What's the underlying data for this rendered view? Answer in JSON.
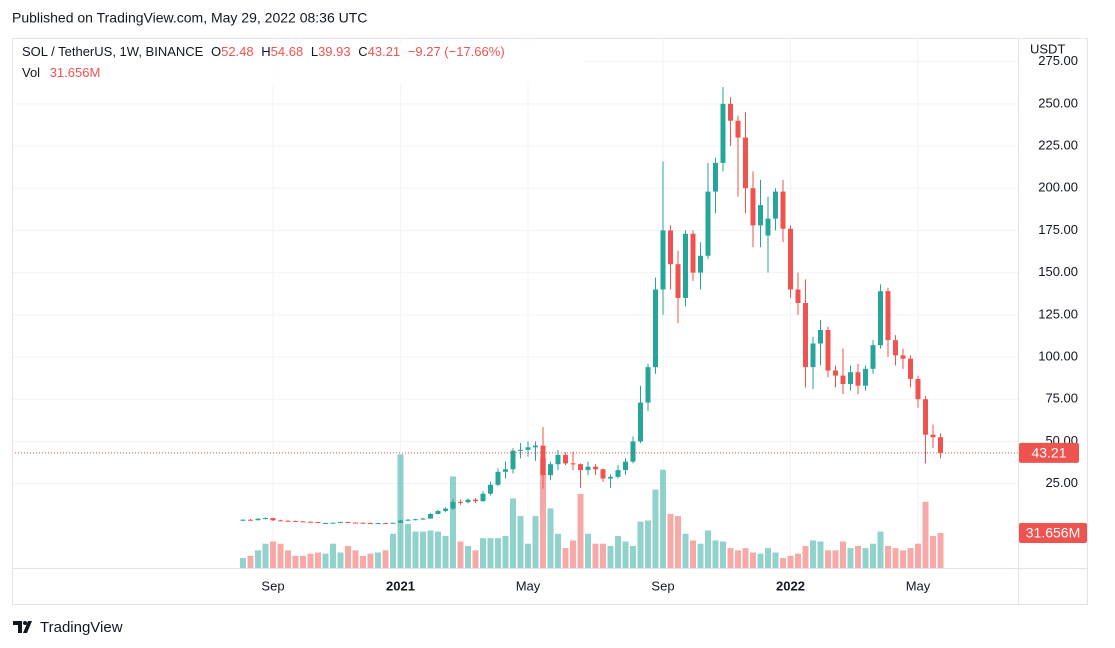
{
  "published": "Published on TradingView.com, May 29, 2022 08:36 UTC",
  "brand": "TradingView",
  "chart_data": {
    "type": "candlestick",
    "title": "SOL / TetherUS, 1W, BINANCE",
    "ohlc_labels": [
      "O",
      "H",
      "L",
      "C"
    ],
    "change_label": "−9.27 (−17.66%)",
    "volume_name": "Vol",
    "volume_label": "31.656M",
    "axis_unit": "USDT",
    "up_color": "#26a69a",
    "down_color": "#ef5350",
    "grid": true,
    "categories": [
      null,
      null,
      null,
      null,
      "Sep",
      null,
      null,
      null,
      null,
      null,
      null,
      null,
      null,
      null,
      null,
      null,
      null,
      null,
      null,
      null,
      null,
      "2021",
      null,
      null,
      null,
      null,
      null,
      null,
      null,
      null,
      null,
      null,
      null,
      null,
      null,
      null,
      null,
      null,
      "May",
      null,
      null,
      null,
      null,
      null,
      null,
      null,
      null,
      null,
      null,
      null,
      null,
      null,
      null,
      null,
      null,
      null,
      "Sep",
      null,
      null,
      null,
      null,
      null,
      null,
      null,
      null,
      null,
      null,
      null,
      null,
      null,
      null,
      null,
      null,
      "2022",
      null,
      null,
      null,
      null,
      null,
      null,
      null,
      null,
      null,
      null,
      null,
      null,
      null,
      null,
      null,
      null,
      "May",
      null,
      null,
      null
    ],
    "open": [
      3.0,
      3.6,
      3.3,
      4.2,
      4.6,
      3.2,
      3.0,
      2.9,
      2.6,
      2.4,
      2.2,
      1.6,
      1.7,
      1.8,
      2.2,
      1.9,
      1.8,
      1.6,
      1.5,
      1.6,
      1.5,
      1.8,
      3.2,
      3.6,
      3.9,
      4.3,
      7.0,
      8.8,
      10.2,
      14.2,
      14.0,
      15.5,
      14.6,
      19.0,
      24.3,
      32.0,
      33.5,
      44.5,
      45.0,
      46.5,
      47.5,
      30.0,
      36.5,
      42.0,
      37.0,
      36.5,
      33.0,
      35.0,
      33.5,
      28.0,
      29.0,
      33.0,
      38.0,
      50.0,
      73.0,
      94.0,
      140,
      175,
      155,
      135,
      173,
      150,
      160,
      198,
      215,
      250,
      240,
      230,
      200,
      178,
      172,
      182,
      198,
      176,
      140,
      132,
      94,
      108,
      116,
      92,
      89,
      84,
      91,
      83,
      93,
      107,
      139,
      110,
      101,
      99,
      87,
      75,
      54,
      52.48
    ],
    "high": [
      3.9,
      4.0,
      4.5,
      5.0,
      4.8,
      3.6,
      3.3,
      3.1,
      2.8,
      2.6,
      2.4,
      1.9,
      2.0,
      2.5,
      2.5,
      2.1,
      2.0,
      1.8,
      1.7,
      1.7,
      1.9,
      3.5,
      4.0,
      4.2,
      4.8,
      7.5,
      9.5,
      11.0,
      16.0,
      15.5,
      16.2,
      16.5,
      20.5,
      26.0,
      34.0,
      38.0,
      46.0,
      49.0,
      50.0,
      50.0,
      58.5,
      38.0,
      45.0,
      43.5,
      44.0,
      37.0,
      38.0,
      36.5,
      34.0,
      30.5,
      36.0,
      40.0,
      53.0,
      83.0,
      96.0,
      147,
      216,
      178,
      163,
      175,
      175,
      168,
      215,
      218,
      260,
      254,
      243,
      245,
      210,
      205,
      195,
      200,
      205,
      178,
      150,
      146,
      112,
      122,
      118,
      95,
      105,
      95,
      96,
      95,
      110,
      143,
      141,
      113,
      105,
      101,
      89,
      77,
      60,
      54.68
    ],
    "low": [
      2.9,
      3.0,
      3.2,
      3.8,
      2.9,
      2.7,
      2.5,
      2.4,
      2.2,
      2.0,
      1.5,
      1.4,
      1.5,
      1.7,
      1.8,
      1.7,
      1.5,
      1.4,
      1.4,
      1.4,
      1.5,
      1.8,
      2.9,
      3.2,
      3.5,
      4.2,
      6.8,
      8.0,
      9.5,
      12.5,
      13.2,
      13.6,
      14.2,
      18.0,
      23.5,
      28.0,
      31.0,
      40.0,
      41.0,
      38.5,
      22.0,
      27.0,
      33.0,
      36.0,
      33.0,
      22.5,
      30.0,
      30.0,
      26.0,
      22.5,
      28.0,
      30.0,
      37.0,
      49.0,
      68.0,
      90,
      125,
      140,
      120,
      130,
      145,
      140,
      158,
      185,
      210,
      225,
      195,
      185,
      165,
      165,
      150,
      175,
      168,
      135,
      125,
      82,
      81,
      95,
      88,
      82,
      78,
      80,
      78,
      80,
      90,
      105,
      100,
      95,
      93,
      82,
      70,
      37,
      46,
      39.93
    ],
    "close": [
      3.6,
      3.3,
      4.2,
      4.6,
      3.2,
      3.0,
      2.9,
      2.6,
      2.4,
      2.2,
      1.6,
      1.7,
      1.8,
      2.2,
      1.9,
      1.8,
      1.6,
      1.5,
      1.6,
      1.5,
      1.8,
      3.2,
      3.6,
      3.9,
      4.3,
      7.0,
      8.8,
      10.2,
      14.2,
      14.0,
      15.5,
      14.6,
      19.0,
      24.3,
      32.0,
      33.5,
      44.5,
      45.0,
      46.5,
      47.5,
      30.0,
      36.5,
      42.0,
      37.0,
      36.5,
      33.0,
      35.0,
      33.5,
      28.0,
      29.0,
      33.0,
      38.0,
      50.0,
      73.0,
      94.0,
      140,
      175,
      155,
      135,
      173,
      150,
      160,
      198,
      215,
      250,
      240,
      230,
      200,
      178,
      190,
      182,
      198,
      176,
      140,
      132,
      94,
      108,
      116,
      92,
      89,
      84,
      91,
      83,
      93,
      107,
      139,
      110,
      101,
      99,
      87,
      75,
      54,
      52.48,
      43.21
    ],
    "volume": [
      9,
      11,
      16,
      22,
      24,
      22,
      16,
      11,
      11,
      13,
      14,
      13,
      22,
      14,
      20,
      16,
      11,
      13,
      14,
      16,
      31,
      103,
      40,
      33,
      33,
      34,
      33,
      29,
      83,
      24,
      20,
      16,
      27,
      27,
      27,
      29,
      63,
      47,
      22,
      47,
      100,
      54,
      31,
      18,
      25,
      67,
      31,
      22,
      22,
      20,
      29,
      24,
      20,
      42,
      43,
      71,
      89,
      49,
      47,
      31,
      25,
      22,
      34,
      25,
      24,
      18,
      16,
      18,
      14,
      13,
      18,
      14,
      9,
      11,
      13,
      20,
      25,
      24,
      16,
      16,
      24,
      18,
      20,
      18,
      22,
      33,
      20,
      18,
      16,
      18,
      22,
      60,
      29,
      31.656
    ],
    "ylim": [
      -25,
      289
    ],
    "vlim": [
      0,
      480
    ],
    "yticks": [
      {
        "value": 25,
        "label": "25.00"
      },
      {
        "value": 50,
        "label": "50.00"
      },
      {
        "value": 75,
        "label": "75.00"
      },
      {
        "value": 100,
        "label": "100.00"
      },
      {
        "value": 125,
        "label": "125.00"
      },
      {
        "value": 150,
        "label": "150.00"
      },
      {
        "value": 175,
        "label": "175.00"
      },
      {
        "value": 200,
        "label": "200.00"
      },
      {
        "value": 225,
        "label": "225.00"
      },
      {
        "value": 250,
        "label": "250.00"
      },
      {
        "value": 275,
        "label": "275.00"
      }
    ]
  }
}
